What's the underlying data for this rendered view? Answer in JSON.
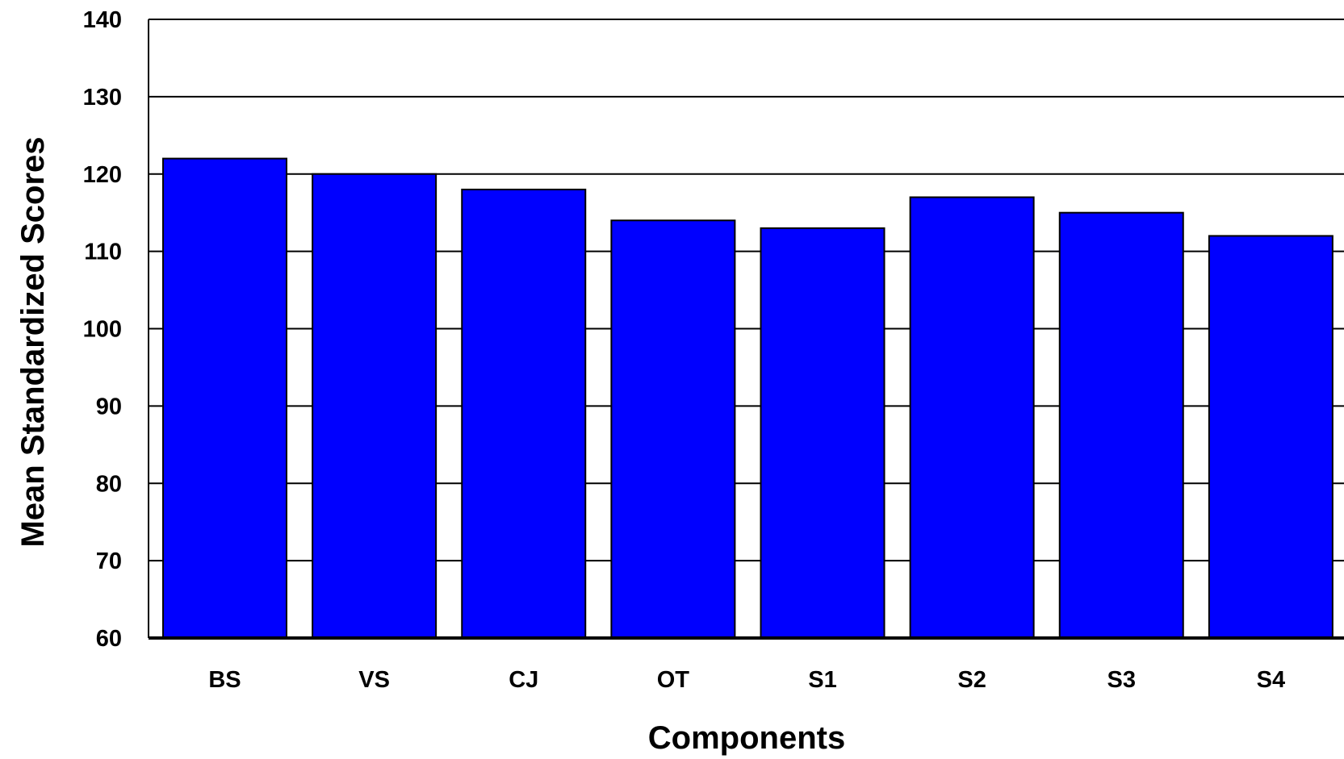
{
  "chart_data": {
    "type": "bar",
    "title": "",
    "xlabel": "Components",
    "ylabel": "Mean Standardized Scores",
    "categories": [
      "BS",
      "VS",
      "CJ",
      "OT",
      "S1",
      "S2",
      "S3",
      "S4"
    ],
    "values": [
      122,
      120,
      118,
      114,
      113,
      117,
      115,
      112
    ],
    "ylim": [
      60,
      140
    ],
    "yticks": [
      "60",
      "70",
      "80",
      "90",
      "100",
      "110",
      "120",
      "130",
      "140"
    ],
    "grid": true,
    "colors": {
      "bar": "#0000ff",
      "bar_edge": "#000000",
      "grid": "#000000",
      "text": "#000000"
    }
  }
}
